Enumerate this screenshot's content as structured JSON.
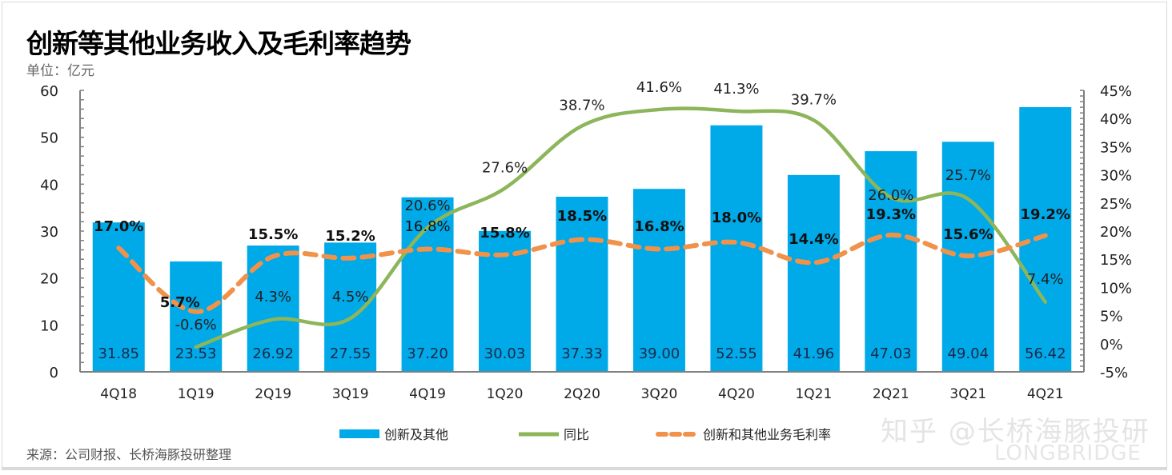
{
  "header": {
    "title": "创新等其他业务收入及毛利率趋势",
    "unit": "单位：亿元"
  },
  "footer": {
    "source": "来源：公司财报、长桥海豚投研整理",
    "watermark": "知乎 @长桥海豚投研",
    "watermark_brand": "LONGBRIDGE"
  },
  "colors": {
    "bar": "#00A9E8",
    "yoy_line": "#8DB55A",
    "margin_line": "#F0924A",
    "axis": "#808080"
  },
  "chart_data": {
    "type": "bar",
    "title": "创新等其他业务收入及毛利率趋势",
    "categories": [
      "4Q18",
      "1Q19",
      "2Q19",
      "3Q19",
      "4Q19",
      "1Q20",
      "2Q20",
      "3Q20",
      "4Q20",
      "1Q21",
      "2Q21",
      "3Q21",
      "4Q21"
    ],
    "series": [
      {
        "name": "创新及其他",
        "type": "bar",
        "axis": "left",
        "values": [
          31.85,
          23.53,
          26.92,
          27.55,
          37.2,
          30.03,
          37.33,
          39.0,
          52.55,
          41.96,
          47.03,
          49.04,
          56.42
        ],
        "labels": [
          "31.85",
          "23.53",
          "26.92",
          "27.55",
          "37.20",
          "30.03",
          "37.33",
          "39.00",
          "52.55",
          "41.96",
          "47.03",
          "49.04",
          "56.42"
        ]
      },
      {
        "name": "同比",
        "type": "line",
        "axis": "right",
        "values": [
          null,
          -0.6,
          4.3,
          4.5,
          20.6,
          27.6,
          38.7,
          41.6,
          41.3,
          39.7,
          26.0,
          25.7,
          7.4
        ],
        "labels": [
          null,
          "-0.6%",
          "4.3%",
          "4.5%",
          "20.6%",
          "27.6%",
          "38.7%",
          "41.6%",
          "41.3%",
          "39.7%",
          "26.0%",
          "25.7%",
          "7.4%"
        ]
      },
      {
        "name": "创新和其他业务毛利率",
        "type": "line",
        "style": "dashed",
        "axis": "right",
        "values": [
          17.0,
          5.7,
          15.5,
          15.2,
          16.8,
          15.8,
          18.5,
          16.8,
          18.0,
          14.4,
          19.3,
          15.6,
          19.2
        ],
        "labels": [
          "17.0%",
          "5.7%",
          "15.5%",
          "15.2%",
          "16.8%",
          "15.8%",
          "18.5%",
          "16.8%",
          "18.0%",
          "14.4%",
          "19.3%",
          "15.6%",
          "19.2%"
        ]
      }
    ],
    "y_left": {
      "range": [
        0,
        60
      ],
      "ticks": [
        "0",
        "10",
        "20",
        "30",
        "40",
        "50",
        "60"
      ]
    },
    "y_right": {
      "range": [
        -5,
        45
      ],
      "ticks": [
        "-5%",
        "0%",
        "5%",
        "10%",
        "15%",
        "20%",
        "25%",
        "30%",
        "35%",
        "40%",
        "45%"
      ]
    },
    "legend": [
      "创新及其他",
      "同比",
      "创新和其他业务毛利率"
    ],
    "legend_position": "bottom",
    "grid": false
  }
}
